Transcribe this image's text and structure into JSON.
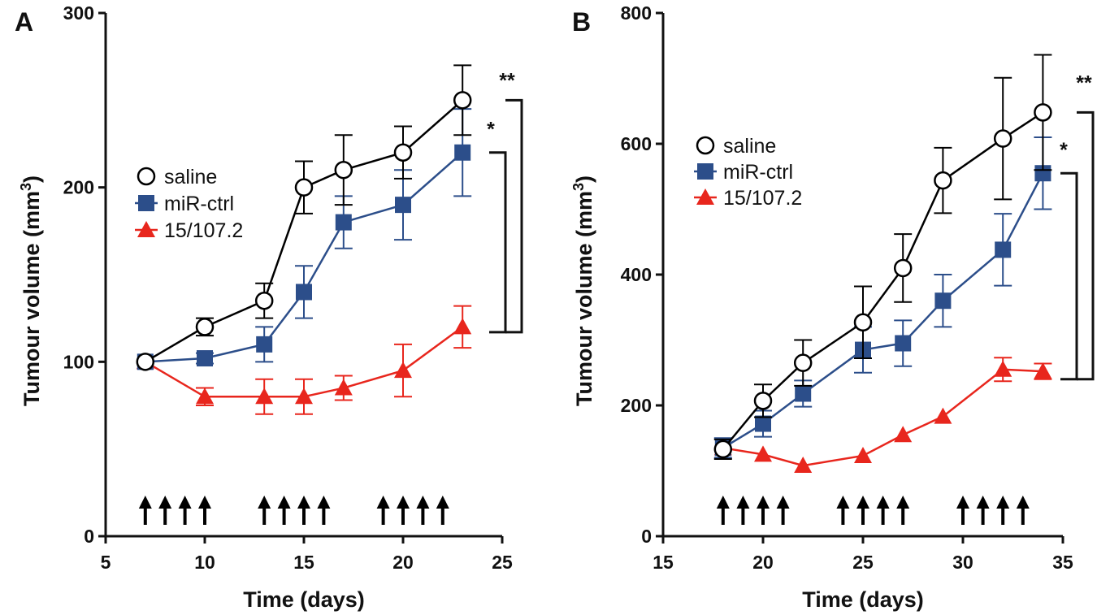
{
  "chart_data": [
    {
      "type": "line",
      "panel_label": "A",
      "xlabel": "Time (days)",
      "ylabel": "Tumour volume (mm",
      "ylabel_sup": "3",
      "ylabel_close": ")",
      "xlim": [
        5,
        25
      ],
      "ylim": [
        0,
        300
      ],
      "xticks": [
        5,
        10,
        15,
        20,
        25
      ],
      "yticks": [
        0,
        100,
        200,
        300
      ],
      "legend_position": "left-middle",
      "series": [
        {
          "name": "saline",
          "color": "#000000",
          "marker": "circle-open",
          "x": [
            7,
            10,
            13,
            15,
            17,
            20,
            23
          ],
          "y": [
            100,
            120,
            135,
            200,
            210,
            220,
            250
          ],
          "err": [
            0,
            5,
            10,
            15,
            20,
            15,
            20
          ]
        },
        {
          "name": "miR-ctrl",
          "color": "#2c4e8a",
          "marker": "square",
          "x": [
            7,
            10,
            13,
            15,
            17,
            20,
            23
          ],
          "y": [
            100,
            102,
            110,
            140,
            180,
            190,
            220
          ],
          "err": [
            0,
            3,
            10,
            15,
            15,
            20,
            25
          ]
        },
        {
          "name": "15/107.2",
          "color": "#e8261d",
          "marker": "triangle",
          "x": [
            7,
            10,
            13,
            15,
            17,
            20,
            23
          ],
          "y": [
            100,
            80,
            80,
            80,
            85,
            95,
            120
          ],
          "err": [
            0,
            5,
            10,
            10,
            7,
            15,
            12
          ]
        }
      ],
      "dosing_days": [
        7,
        8,
        9,
        10,
        13,
        14,
        15,
        16,
        19,
        20,
        21,
        22
      ],
      "significance": [
        {
          "label": "*",
          "y_top": 220,
          "y_bottom": 117
        },
        {
          "label": "**",
          "y_top": 250,
          "y_bottom": 117
        }
      ]
    },
    {
      "type": "line",
      "panel_label": "B",
      "xlabel": "Time (days)",
      "ylabel": "Tumour volume (mm",
      "ylabel_sup": "3",
      "ylabel_close": ")",
      "xlim": [
        15,
        35
      ],
      "ylim": [
        0,
        800
      ],
      "xticks": [
        15,
        20,
        25,
        30,
        35
      ],
      "yticks": [
        0,
        200,
        400,
        600,
        800
      ],
      "legend_position": "left-top",
      "series": [
        {
          "name": "saline",
          "color": "#000000",
          "marker": "circle-open",
          "x": [
            18,
            20,
            22,
            25,
            27,
            29,
            32,
            34
          ],
          "y": [
            133,
            207,
            265,
            327,
            410,
            544,
            608,
            648
          ],
          "err": [
            15,
            25,
            35,
            55,
            52,
            50,
            93,
            88
          ]
        },
        {
          "name": "miR-ctrl",
          "color": "#2c4e8a",
          "marker": "square",
          "x": [
            18,
            20,
            22,
            25,
            27,
            29,
            32,
            34
          ],
          "y": [
            135,
            172,
            218,
            285,
            295,
            360,
            438,
            555
          ],
          "err": [
            15,
            20,
            20,
            35,
            35,
            40,
            55,
            55
          ]
        },
        {
          "name": "15/107.2",
          "color": "#e8261d",
          "marker": "triangle",
          "x": [
            18,
            20,
            22,
            25,
            27,
            29,
            32,
            34
          ],
          "y": [
            135,
            125,
            108,
            123,
            155,
            183,
            255,
            252
          ],
          "err": [
            0,
            0,
            0,
            0,
            0,
            0,
            18,
            12
          ]
        }
      ],
      "dosing_days": [
        18,
        19,
        20,
        21,
        24,
        25,
        26,
        27,
        30,
        31,
        32,
        33
      ],
      "significance": [
        {
          "label": "*",
          "y_top": 555,
          "y_bottom": 240
        },
        {
          "label": "**",
          "y_top": 648,
          "y_bottom": 240
        }
      ]
    }
  ]
}
